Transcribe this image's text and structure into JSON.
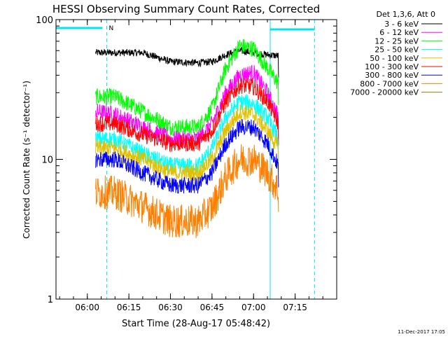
{
  "footer": {
    "timestamp": "11-Dec-2017 17:05"
  },
  "chart_data": {
    "type": "line",
    "title": "HESSI Observing Summary Count Rates, Corrected",
    "xlabel": "Start Time (28-Aug-17 05:48:42)",
    "ylabel": "Corrected Count Rate (s⁻¹ detector⁻¹)",
    "y_scale": "log",
    "ylim": [
      1,
      100
    ],
    "xlim": [
      "05:48:42",
      "07:30:00"
    ],
    "grid": false,
    "legend_position": "top-right",
    "legend_title": "Det 1,3,6, Att 0",
    "x_ticks": [
      "06:00",
      "06:15",
      "06:30",
      "06:45",
      "07:00",
      "07:15"
    ],
    "y_ticks": [
      "1",
      "10",
      "100"
    ],
    "annotations": [
      {
        "text": "N",
        "x": "06:07"
      }
    ],
    "markers": {
      "night_start": "05:48:42",
      "night_end": "06:07:00",
      "saa_like_start": "07:06:00",
      "saa_like_end": "07:22:00",
      "data_start": "06:03:00",
      "data_end": "07:09:00"
    },
    "series": [
      {
        "name": "3 - 6 keV",
        "color": "#000000",
        "x": [
          "06:03",
          "06:10",
          "06:20",
          "06:30",
          "06:40",
          "06:45",
          "06:50",
          "06:55",
          "07:00",
          "07:05",
          "07:09"
        ],
        "y": [
          58,
          58,
          58,
          50,
          49,
          50,
          56,
          60,
          58,
          56,
          55
        ]
      },
      {
        "name": "6 - 12 keV",
        "color": "#ff00ff",
        "x": [
          "06:03",
          "06:10",
          "06:20",
          "06:30",
          "06:40",
          "06:45",
          "06:50",
          "06:55",
          "07:00",
          "07:05",
          "07:09"
        ],
        "y": [
          22,
          21,
          17,
          14,
          14,
          18,
          30,
          40,
          42,
          30,
          20
        ]
      },
      {
        "name": "12 - 25 keV",
        "color": "#00ff00",
        "x": [
          "06:03",
          "06:10",
          "06:20",
          "06:30",
          "06:40",
          "06:45",
          "06:50",
          "06:55",
          "07:00",
          "07:05",
          "07:09"
        ],
        "y": [
          28,
          28,
          22,
          17,
          17,
          23,
          45,
          65,
          62,
          45,
          35
        ]
      },
      {
        "name": "25 - 50 keV",
        "color": "#00ffff",
        "x": [
          "06:03",
          "06:10",
          "06:20",
          "06:30",
          "06:40",
          "06:45",
          "06:50",
          "06:55",
          "07:00",
          "07:05",
          "07:09"
        ],
        "y": [
          14,
          14,
          11,
          9,
          9,
          12,
          20,
          26,
          25,
          20,
          14
        ]
      },
      {
        "name": "50 - 100 keV",
        "color": "#e0c000",
        "x": [
          "06:03",
          "06:10",
          "06:20",
          "06:30",
          "06:40",
          "06:45",
          "06:50",
          "06:55",
          "07:00",
          "07:05",
          "07:09"
        ],
        "y": [
          12,
          12,
          10,
          8,
          8,
          10,
          16,
          22,
          21,
          16,
          12
        ]
      },
      {
        "name": "100 - 300 keV",
        "color": "#ff0000",
        "x": [
          "06:03",
          "06:10",
          "06:20",
          "06:30",
          "06:40",
          "06:45",
          "06:50",
          "06:55",
          "07:00",
          "07:05",
          "07:09"
        ],
        "y": [
          18,
          18,
          15,
          13,
          13,
          16,
          26,
          34,
          33,
          26,
          18
        ]
      },
      {
        "name": "300 - 800 keV",
        "color": "#0000ff",
        "x": [
          "06:03",
          "06:10",
          "06:20",
          "06:30",
          "06:40",
          "06:45",
          "06:50",
          "06:55",
          "07:00",
          "07:05",
          "07:09"
        ],
        "y": [
          10,
          10,
          8,
          6.5,
          6.5,
          8,
          13,
          17,
          17,
          13,
          9
        ]
      },
      {
        "name": "800 - 7000 keV",
        "color": "#ff8000",
        "x": [
          "06:03",
          "06:10",
          "06:20",
          "06:30",
          "06:40",
          "06:45",
          "06:50",
          "06:55",
          "07:00",
          "07:05",
          "07:09"
        ],
        "y": [
          5.8,
          5.8,
          4.6,
          3.6,
          3.6,
          4.5,
          7.5,
          10,
          10,
          8,
          6
        ]
      },
      {
        "name": "7000 - 20000 keV",
        "color": "#a07800",
        "x": [],
        "y": []
      }
    ]
  }
}
